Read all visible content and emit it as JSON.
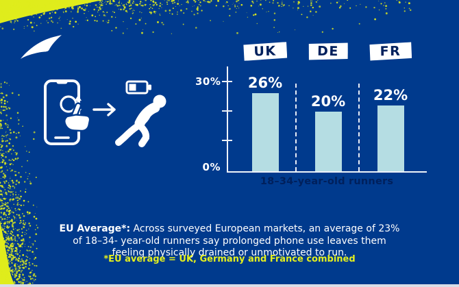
{
  "brand": {
    "name": "Brooks",
    "logo_icon": "brooks-swoosh"
  },
  "colors": {
    "background": "#003A8D",
    "navy_text": "#00205C",
    "bar_fill": "#B5DDE3",
    "axis_line": "#EFF3F9",
    "spray_yellow": "#DFEC1C",
    "footnote_yellow": "#E3EF1E",
    "white": "#FFFFFF"
  },
  "illustration": {
    "phone_icon": "phone-scroll-gesture",
    "arrow_icon": "arrow-right",
    "battery_icon": "low-battery",
    "person_icon": "tired-hunched-runner"
  },
  "chart_data": {
    "type": "bar",
    "categories": [
      "UK",
      "DE",
      "FR"
    ],
    "values": [
      26,
      20,
      22
    ],
    "value_labels": [
      "26%",
      "20%",
      "22%"
    ],
    "title": "",
    "xlabel": "18–34-year-old runners",
    "ylabel": "",
    "yticks": [
      "0%",
      "30%"
    ],
    "ylim": [
      0,
      33
    ],
    "axis_max_pct": 30,
    "grid": false,
    "legend": "none",
    "separators": "dashed-vertical-white"
  },
  "footer": {
    "body_bold": "EU Average*:",
    "body_rest": " Across surveyed European markets, an average of 23% of 18–34- year-old runners say prolonged phone use leaves them feeling physically drained or unmotivated to run.",
    "footnote": "*EU average = UK, Germany and France combined"
  }
}
